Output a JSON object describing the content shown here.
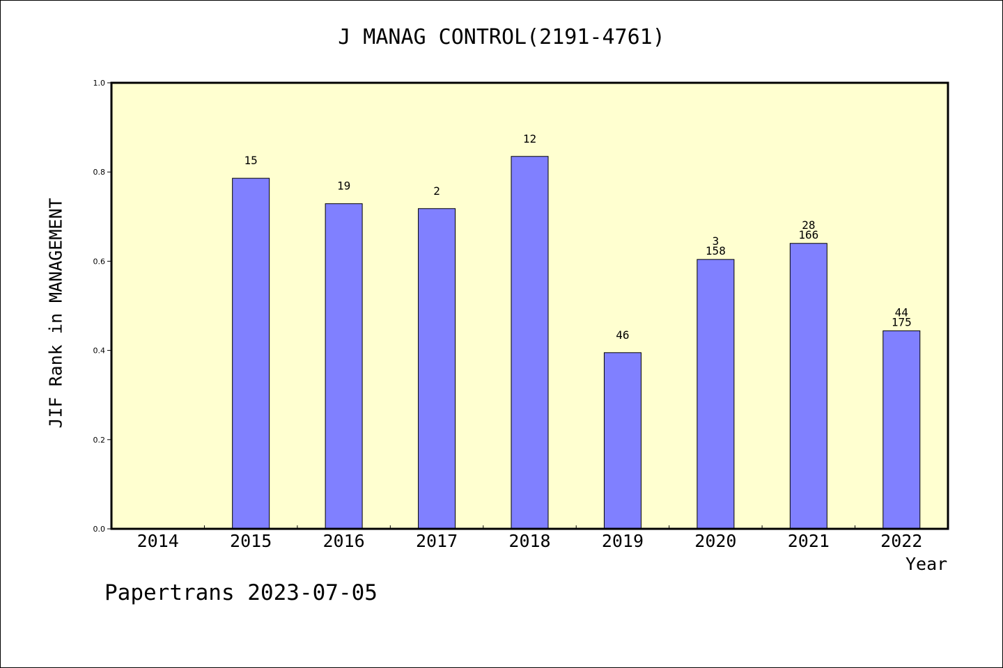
{
  "chart_data": {
    "type": "bar",
    "title": "J MANAG CONTROL(2191-4761)",
    "xlabel": "Year",
    "ylabel": "JIF Rank in MANAGEMENT",
    "ylim": [
      0,
      1.0
    ],
    "yticks": [
      "0.0",
      "0.2",
      "0.4",
      "0.6",
      "0.8",
      "1.0"
    ],
    "categories": [
      "2014",
      "2015",
      "2016",
      "2017",
      "2018",
      "2019",
      "2020",
      "2021",
      "2022"
    ],
    "values": [
      null,
      0.786,
      0.729,
      0.718,
      0.835,
      0.395,
      0.604,
      0.64,
      0.444
    ],
    "bar_labels": [
      [],
      [
        "15"
      ],
      [
        "19"
      ],
      [
        "2"
      ],
      [
        "12"
      ],
      [
        "46"
      ],
      [
        "3",
        "158"
      ],
      [
        "28",
        "166"
      ],
      [
        "44",
        "175"
      ]
    ],
    "colors": {
      "plot_bg": "#ffffd0",
      "bar": "#8080ff"
    },
    "grid": false
  },
  "footer": {
    "text": "Papertrans 2023-07-05"
  }
}
